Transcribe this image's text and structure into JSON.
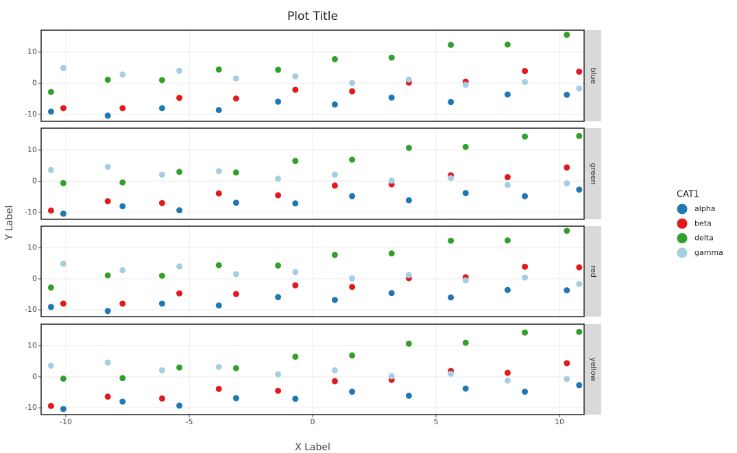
{
  "title": "Plot Title",
  "x_label": "X Label",
  "y_label": "Y Label",
  "legend_title": "CAT1",
  "chart_data": [
    {
      "type": "scatter",
      "facet": "blue",
      "xlim": [
        -11,
        11
      ],
      "ylim": [
        -12.2,
        17
      ],
      "xticks": [
        -10,
        -5,
        0,
        5,
        10
      ],
      "yticks": [
        -10,
        0,
        10
      ],
      "grid": true,
      "series": [
        {
          "name": "alpha",
          "color": "#1f78b4",
          "x": [
            -10.6,
            -8.3,
            -6.1,
            -3.8,
            -1.4,
            0.9,
            3.2,
            5.6,
            7.9,
            10.3
          ],
          "values": [
            -9.1,
            -10.4,
            -8.0,
            -8.6,
            -5.9,
            -6.8,
            -4.6,
            -6.0,
            -3.6,
            -3.7
          ]
        },
        {
          "name": "beta",
          "color": "#e31a1c",
          "x": [
            -10.1,
            -7.7,
            -5.4,
            -3.1,
            -0.7,
            1.6,
            3.9,
            6.2,
            8.6,
            10.8
          ],
          "values": [
            -8.0,
            -8.0,
            -4.7,
            -4.9,
            -2.1,
            -2.6,
            0.2,
            0.5,
            3.9,
            3.7
          ]
        },
        {
          "name": "delta",
          "color": "#33a02c",
          "x": [
            -10.6,
            -8.3,
            -6.1,
            -3.8,
            -1.4,
            0.9,
            3.2,
            5.6,
            7.9,
            10.3
          ],
          "values": [
            -2.8,
            1.1,
            1.0,
            4.4,
            4.3,
            7.7,
            8.2,
            12.3,
            12.4,
            15.5
          ]
        },
        {
          "name": "gamma",
          "color": "#a6cee3",
          "x": [
            -10.1,
            -7.7,
            -5.4,
            -3.1,
            -0.7,
            1.6,
            3.9,
            6.2,
            8.6,
            10.8
          ],
          "values": [
            4.9,
            2.8,
            4.0,
            1.5,
            2.2,
            0.1,
            1.2,
            -0.5,
            0.4,
            -1.7
          ]
        }
      ]
    },
    {
      "type": "scatter",
      "facet": "green",
      "xlim": [
        -11,
        11
      ],
      "ylim": [
        -12.2,
        17
      ],
      "xticks": [
        -10,
        -5,
        0,
        5,
        10
      ],
      "yticks": [
        -10,
        0,
        10
      ],
      "grid": true,
      "series": [
        {
          "name": "alpha",
          "color": "#1f78b4",
          "x": [
            -10.1,
            -7.7,
            -5.4,
            -3.1,
            -0.7,
            1.6,
            3.9,
            6.2,
            8.6,
            10.8
          ],
          "values": [
            -10.4,
            -8.0,
            -9.3,
            -6.9,
            -7.1,
            -4.8,
            -6.1,
            -3.8,
            -4.8,
            -2.7
          ]
        },
        {
          "name": "beta",
          "color": "#e31a1c",
          "x": [
            -10.6,
            -8.3,
            -6.1,
            -3.8,
            -1.4,
            0.9,
            3.2,
            5.6,
            7.9,
            10.3
          ],
          "values": [
            -9.4,
            -6.4,
            -7.0,
            -3.9,
            -4.5,
            -1.4,
            -1.0,
            1.9,
            1.3,
            4.4
          ]
        },
        {
          "name": "delta",
          "color": "#33a02c",
          "x": [
            -10.1,
            -7.7,
            -5.4,
            -3.1,
            -0.7,
            1.6,
            3.9,
            6.2,
            8.6,
            10.8
          ],
          "values": [
            -0.6,
            -0.4,
            3.0,
            2.8,
            6.5,
            6.9,
            10.7,
            11.0,
            14.3,
            14.5
          ]
        },
        {
          "name": "gamma",
          "color": "#a6cee3",
          "x": [
            -10.6,
            -8.3,
            -6.1,
            -3.8,
            -1.4,
            0.9,
            3.2,
            5.6,
            7.9,
            10.3
          ],
          "values": [
            3.6,
            4.6,
            2.1,
            3.2,
            0.8,
            2.1,
            0.2,
            1.0,
            -1.2,
            -0.7
          ]
        }
      ]
    },
    {
      "type": "scatter",
      "facet": "red",
      "xlim": [
        -11,
        11
      ],
      "ylim": [
        -12.2,
        17
      ],
      "xticks": [
        -10,
        -5,
        0,
        5,
        10
      ],
      "yticks": [
        -10,
        0,
        10
      ],
      "grid": true,
      "series": [
        {
          "name": "alpha",
          "color": "#1f78b4",
          "x": [
            -10.6,
            -8.3,
            -6.1,
            -3.8,
            -1.4,
            0.9,
            3.2,
            5.6,
            7.9,
            10.3
          ],
          "values": [
            -9.1,
            -10.4,
            -8.0,
            -8.6,
            -5.9,
            -6.8,
            -4.6,
            -6.0,
            -3.6,
            -3.7
          ]
        },
        {
          "name": "beta",
          "color": "#e31a1c",
          "x": [
            -10.1,
            -7.7,
            -5.4,
            -3.1,
            -0.7,
            1.6,
            3.9,
            6.2,
            8.6,
            10.8
          ],
          "values": [
            -8.0,
            -8.0,
            -4.7,
            -4.9,
            -2.1,
            -2.6,
            0.2,
            0.5,
            3.9,
            3.7
          ]
        },
        {
          "name": "delta",
          "color": "#33a02c",
          "x": [
            -10.6,
            -8.3,
            -6.1,
            -3.8,
            -1.4,
            0.9,
            3.2,
            5.6,
            7.9,
            10.3
          ],
          "values": [
            -2.8,
            1.1,
            1.0,
            4.4,
            4.3,
            7.7,
            8.2,
            12.3,
            12.4,
            15.5
          ]
        },
        {
          "name": "gamma",
          "color": "#a6cee3",
          "x": [
            -10.1,
            -7.7,
            -5.4,
            -3.1,
            -0.7,
            1.6,
            3.9,
            6.2,
            8.6,
            10.8
          ],
          "values": [
            4.9,
            2.8,
            4.0,
            1.5,
            2.2,
            0.1,
            1.2,
            -0.5,
            0.4,
            -1.7
          ]
        }
      ]
    },
    {
      "type": "scatter",
      "facet": "yellow",
      "xlim": [
        -11,
        11
      ],
      "ylim": [
        -12.2,
        17
      ],
      "xticks": [
        -10,
        -5,
        0,
        5,
        10
      ],
      "yticks": [
        -10,
        0,
        10
      ],
      "grid": true,
      "series": [
        {
          "name": "alpha",
          "color": "#1f78b4",
          "x": [
            -10.1,
            -7.7,
            -5.4,
            -3.1,
            -0.7,
            1.6,
            3.9,
            6.2,
            8.6,
            10.8
          ],
          "values": [
            -10.4,
            -8.0,
            -9.3,
            -6.9,
            -7.1,
            -4.8,
            -6.1,
            -3.8,
            -4.8,
            -2.7
          ]
        },
        {
          "name": "beta",
          "color": "#e31a1c",
          "x": [
            -10.6,
            -8.3,
            -6.1,
            -3.8,
            -1.4,
            0.9,
            3.2,
            5.6,
            7.9,
            10.3
          ],
          "values": [
            -9.4,
            -6.4,
            -7.0,
            -3.9,
            -4.5,
            -1.4,
            -1.0,
            1.9,
            1.3,
            4.4
          ]
        },
        {
          "name": "delta",
          "color": "#33a02c",
          "x": [
            -10.1,
            -7.7,
            -5.4,
            -3.1,
            -0.7,
            1.6,
            3.9,
            6.2,
            8.6,
            10.8
          ],
          "values": [
            -0.6,
            -0.4,
            3.0,
            2.8,
            6.5,
            6.9,
            10.7,
            11.0,
            14.3,
            14.5
          ]
        },
        {
          "name": "gamma",
          "color": "#a6cee3",
          "x": [
            -10.6,
            -8.3,
            -6.1,
            -3.8,
            -1.4,
            0.9,
            3.2,
            5.6,
            7.9,
            10.3
          ],
          "values": [
            3.6,
            4.6,
            2.1,
            3.2,
            0.8,
            2.1,
            0.2,
            1.0,
            -1.2,
            -0.7
          ]
        }
      ]
    }
  ]
}
